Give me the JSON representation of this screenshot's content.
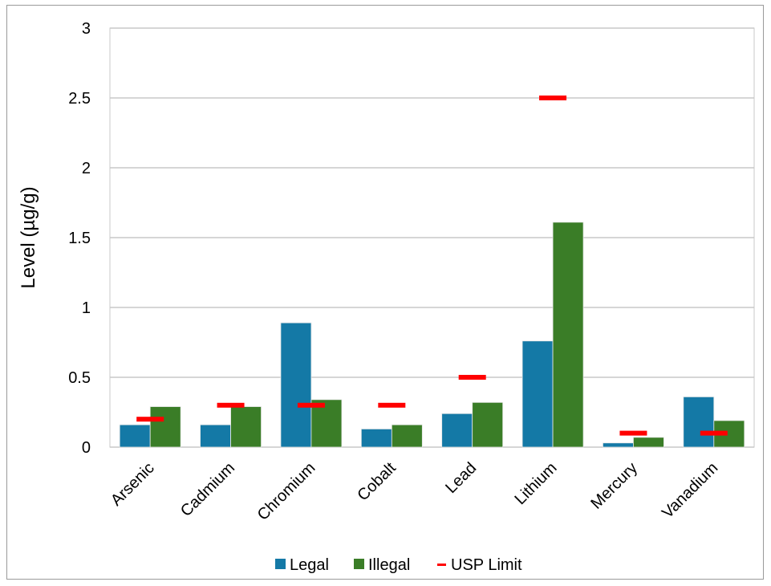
{
  "chart_data": {
    "type": "bar",
    "title": "",
    "xlabel": "",
    "ylabel": "Level (µg/g)",
    "ylim": [
      0,
      3
    ],
    "yticks": [
      "0",
      "0.5",
      "1",
      "1.5",
      "2",
      "2.5",
      "3"
    ],
    "grid": true,
    "legend_position": "bottom",
    "categories": [
      "Arsenic",
      "Cadmium",
      "Chromium",
      "Cobalt",
      "Lead",
      "Lithium",
      "Mercury",
      "Vanadium"
    ],
    "series": [
      {
        "name": "Legal",
        "kind": "bar",
        "color": "#1479A6",
        "values": [
          0.16,
          0.16,
          0.89,
          0.13,
          0.24,
          0.76,
          0.03,
          0.36
        ]
      },
      {
        "name": "Illegal",
        "kind": "bar",
        "color": "#3A7D27",
        "values": [
          0.29,
          0.29,
          0.34,
          0.16,
          0.32,
          1.61,
          0.07,
          0.19
        ]
      },
      {
        "name": "USP Limit",
        "kind": "marker",
        "color": "#FF0000",
        "values": [
          0.2,
          0.3,
          0.3,
          0.3,
          0.5,
          2.5,
          0.1,
          0.1
        ]
      }
    ]
  }
}
